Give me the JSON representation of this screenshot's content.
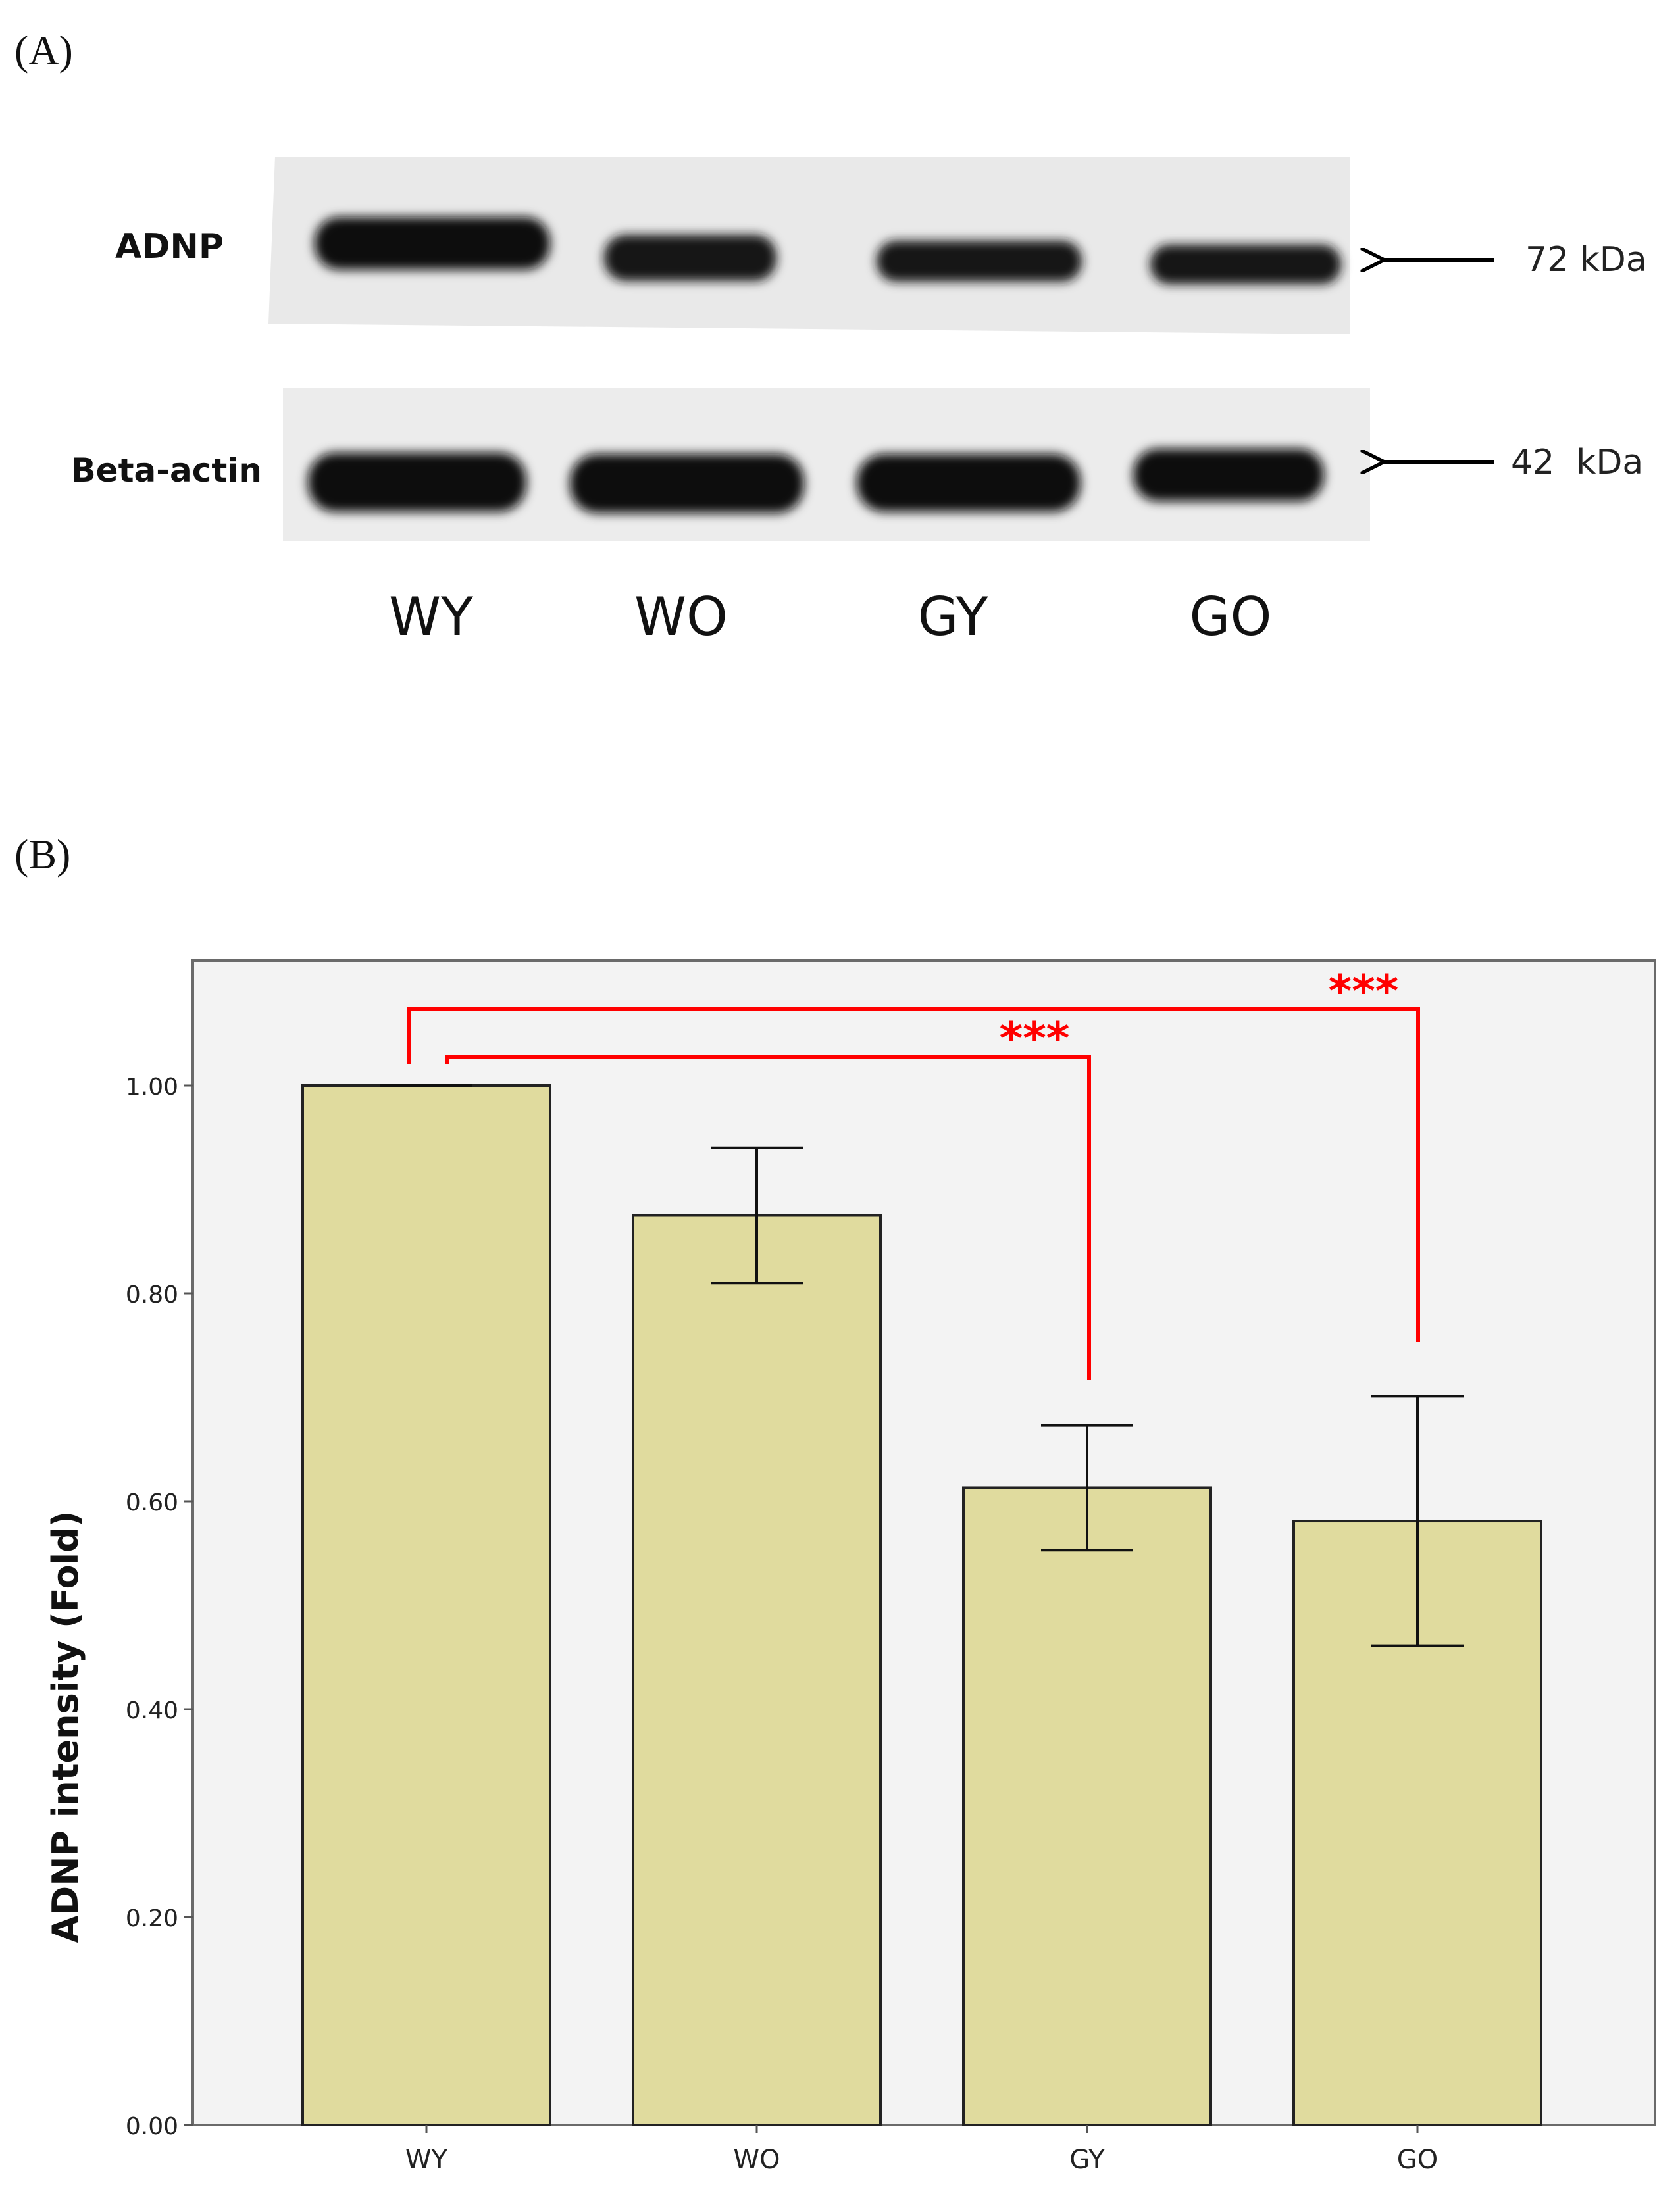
{
  "panel_a": {
    "label": "(A)",
    "bands": [
      {
        "name": "ADNP",
        "size": "72 kDa"
      },
      {
        "name": "Beta-actin",
        "size": "42  kDa"
      }
    ],
    "lanes": [
      "WY",
      "WO",
      "GY",
      "GO"
    ]
  },
  "panel_b": {
    "label": "(B)"
  },
  "chart_data": {
    "type": "bar",
    "categories": [
      "WY",
      "WO",
      "GY",
      "GO"
    ],
    "values": [
      1.0,
      0.875,
      0.613,
      0.581
    ],
    "error": [
      0.0,
      0.065,
      0.06,
      0.12
    ],
    "ylabel": "ADNP intensity (Fold)",
    "xlabel": "",
    "ylim": [
      0,
      1.12
    ],
    "yticks": [
      "0.00",
      "0.20",
      "0.40",
      "0.60",
      "0.80",
      "1.00"
    ],
    "ytick_values": [
      0,
      0.2,
      0.4,
      0.6,
      0.8,
      1.0
    ],
    "significance": [
      {
        "from": "WY",
        "to": "GY",
        "label": "***"
      },
      {
        "from": "WY",
        "to": "GO",
        "label": "***"
      }
    ],
    "colors": {
      "bar": "#e0db9e",
      "bar_stroke": "#222222",
      "background": "#f3f3f3",
      "significance": "#ff0000"
    }
  }
}
